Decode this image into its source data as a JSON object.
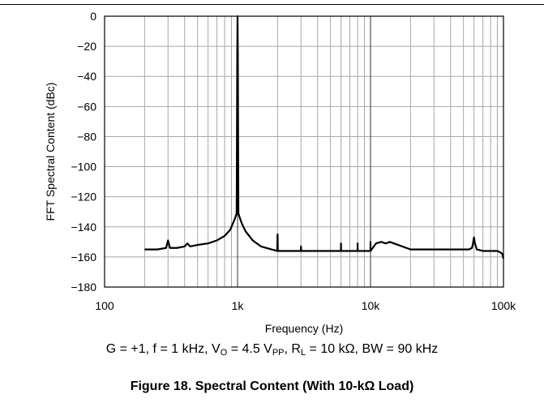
{
  "chart_data": {
    "type": "line",
    "xscale": "log",
    "xlim": [
      100,
      100000
    ],
    "ylim": [
      -180,
      0
    ],
    "xlabel": "Frequency (Hz)",
    "ylabel": "FFT Spectral Content (dBc)",
    "xticks": [
      "100",
      "1k",
      "10k",
      "100k"
    ],
    "yticks": [
      "0",
      "−20",
      "−40",
      "−60",
      "−80",
      "−100",
      "−120",
      "−140",
      "−160",
      "−180"
    ],
    "grid": true,
    "series": [
      {
        "color": "#000000",
        "x": [
          200,
          250,
          290,
          300,
          310,
          350,
          400,
          420,
          440,
          500,
          600,
          700,
          800,
          880,
          930,
          960,
          985,
          995,
          1000,
          1005,
          1015,
          1040,
          1080,
          1150,
          1300,
          1500,
          1800,
          1990,
          2000,
          2010,
          2500,
          2990,
          3000,
          3010,
          3500,
          4000,
          5000,
          5990,
          6000,
          6010,
          7000,
          7990,
          8000,
          8010,
          9000,
          9990,
          10000,
          10010,
          11000,
          12000,
          13000,
          14000,
          15000,
          20000,
          30000,
          40000,
          50000,
          55000,
          58000,
          59000,
          60000,
          61000,
          63000,
          70000,
          80000,
          90000,
          95000,
          98000,
          100000
        ],
        "y": [
          -155,
          -155,
          -154,
          -149,
          -154,
          -154,
          -153,
          -151,
          -153,
          -152,
          -151,
          -149,
          -146,
          -142,
          -137,
          -134,
          -131,
          -25,
          0,
          -25,
          -131,
          -134,
          -138,
          -143,
          -149,
          -153,
          -155,
          -156,
          -145,
          -156,
          -156,
          -156,
          -153,
          -156,
          -156,
          -156,
          -156,
          -156,
          -151,
          -156,
          -156,
          -156,
          -151,
          -156,
          -156,
          -156,
          -150,
          -156,
          -151,
          -150,
          -151,
          -150,
          -151,
          -155,
          -155,
          -155,
          -155,
          -155,
          -154,
          -151,
          -147,
          -151,
          -155,
          -156,
          -156,
          -156,
          -157,
          -158,
          -161
        ]
      }
    ]
  },
  "conditions": {
    "g": "G = +1, f = 1 kHz, V",
    "vo_sub": "O",
    "vo_val": " = 4.5 V",
    "vpp_sub": "PP",
    "rl": ", R",
    "rl_sub": "L",
    "rest": " = 10 kΩ, BW = 90 kHz"
  },
  "caption": "Figure 18. Spectral Content (With 10-kΩ Load)"
}
